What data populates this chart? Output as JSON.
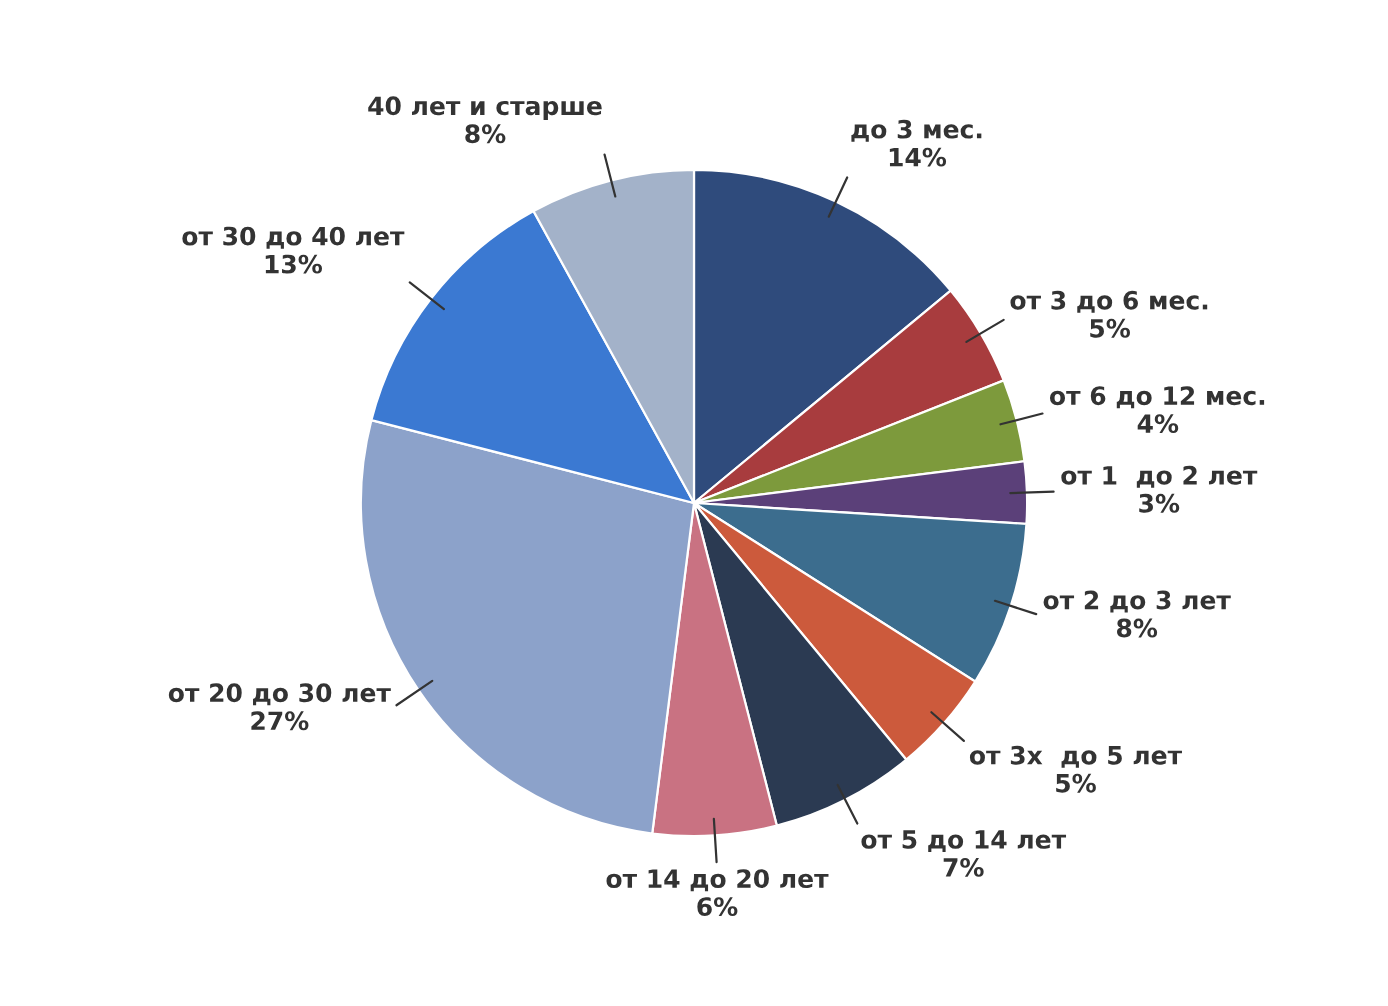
{
  "chart_data": {
    "type": "pie",
    "categories": [
      "до 3 мес.",
      "от 3 до 6 мес.",
      "от 6 до 12 мес.",
      "от 1  до 2 лет",
      "от 2 до 3 лет",
      "от 3х  до 5 лет",
      "от 5 до 14 лет",
      "от 14 до 20 лет",
      "от 20 до 30 лет",
      "от 30 до 40 лет",
      "40 лет и старше"
    ],
    "values": [
      14,
      5,
      4,
      3,
      8,
      5,
      7,
      6,
      27,
      13,
      8
    ],
    "value_labels": [
      "14%",
      "5%",
      "4%",
      "3%",
      "8%",
      "5%",
      "7%",
      "6%",
      "27%",
      "13%",
      "8%"
    ],
    "colors": [
      "#2f4b7c",
      "#a83c3e",
      "#7d9a3c",
      "#5b4079",
      "#3c6d8e",
      "#cc5a3c",
      "#2b3a52",
      "#c97282",
      "#8ca2ca",
      "#3b79d2",
      "#a3b2c9"
    ],
    "legend": false
  }
}
